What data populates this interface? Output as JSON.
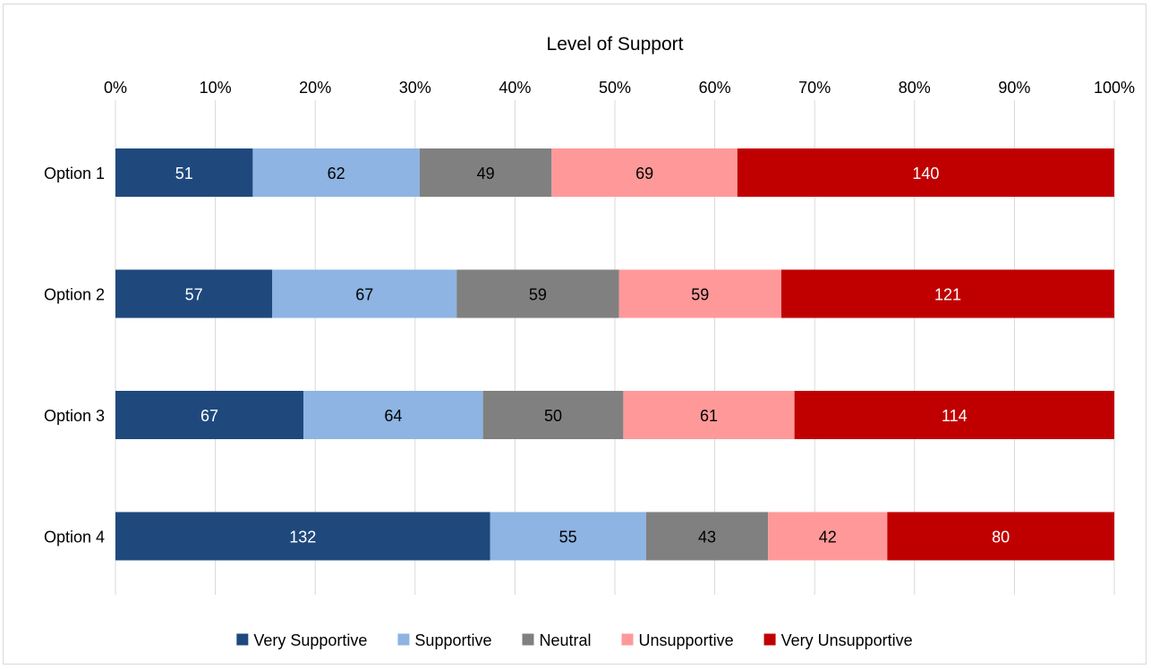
{
  "chart_data": {
    "type": "bar",
    "orientation": "horizontal",
    "stacked": "percent",
    "title": "Level of Support",
    "categories": [
      "Option 1",
      "Option 2",
      "Option 3",
      "Option 4"
    ],
    "series": [
      {
        "name": "Very Supportive",
        "color": "#1F497D",
        "label_color": "#FFFFFF",
        "values": [
          51,
          57,
          67,
          132
        ]
      },
      {
        "name": "Supportive",
        "color": "#8DB4E2",
        "label_color": "#000000",
        "values": [
          62,
          67,
          64,
          55
        ]
      },
      {
        "name": "Neutral",
        "color": "#808080",
        "label_color": "#000000",
        "values": [
          49,
          59,
          50,
          43
        ]
      },
      {
        "name": "Unsupportive",
        "color": "#FF9999",
        "label_color": "#000000",
        "values": [
          69,
          59,
          61,
          42
        ]
      },
      {
        "name": "Very Unsupportive",
        "color": "#C00000",
        "label_color": "#FFFFFF",
        "values": [
          140,
          121,
          114,
          80
        ]
      }
    ],
    "x_ticks": [
      "0%",
      "10%",
      "20%",
      "30%",
      "40%",
      "50%",
      "60%",
      "70%",
      "80%",
      "90%",
      "100%"
    ],
    "xlim": [
      0,
      100
    ],
    "axis_position": "top",
    "grid": true,
    "legend_position": "bottom"
  }
}
